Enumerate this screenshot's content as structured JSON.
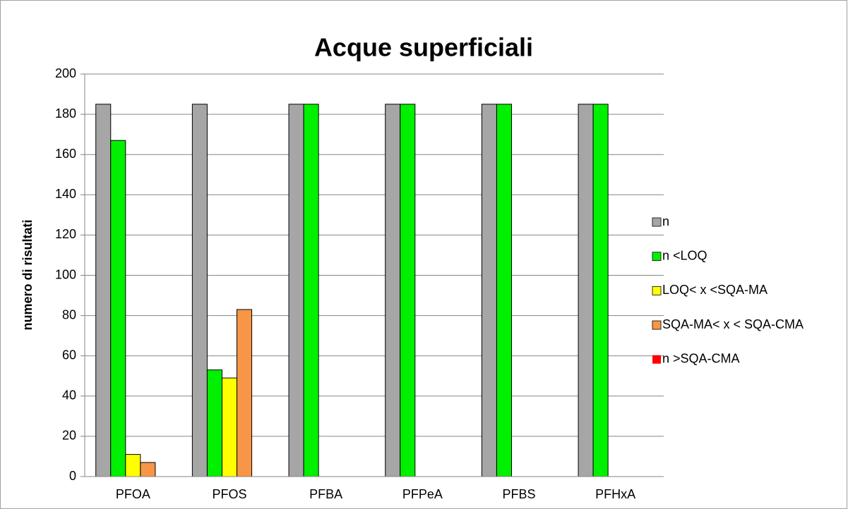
{
  "chart_data": {
    "type": "bar",
    "title": "Acque superficiali",
    "y_label": "numero di risultati",
    "categories": [
      "PFOA",
      "PFOS",
      "PFBA",
      "PFPeA",
      "PFBS",
      "PFHxA"
    ],
    "series": [
      {
        "name": "n",
        "color": "#a6a6a6",
        "values": [
          185,
          185,
          185,
          185,
          185,
          185
        ]
      },
      {
        "name": "n <LOQ",
        "color": "#00f000",
        "values": [
          167,
          53,
          185,
          185,
          185,
          185
        ]
      },
      {
        "name": "LOQ< x <SQA-MA",
        "color": "#ffff00",
        "values": [
          11,
          49,
          0,
          0,
          0,
          0
        ]
      },
      {
        "name": "SQA-MA< x < SQA-CMA",
        "color": "#f79646",
        "values": [
          7,
          83,
          0,
          0,
          0,
          0
        ]
      },
      {
        "name": "n >SQA-CMA",
        "color": "#ff0000",
        "values": [
          0,
          0,
          0,
          0,
          0,
          0
        ]
      }
    ],
    "ylim": [
      0,
      200
    ],
    "yticks": [
      0,
      20,
      40,
      60,
      80,
      100,
      120,
      140,
      160,
      180,
      200
    ],
    "grid": true,
    "legend": "right"
  }
}
